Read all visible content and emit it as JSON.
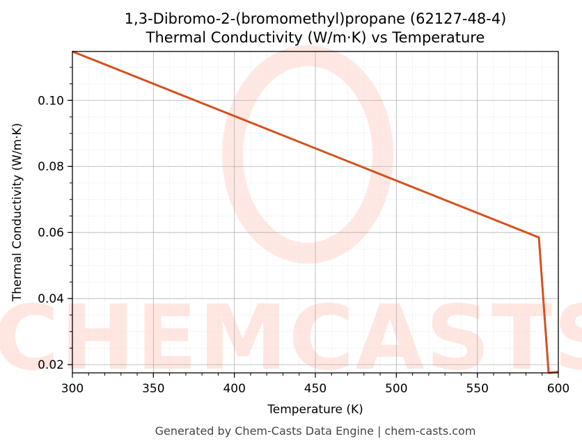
{
  "chart_data": {
    "type": "line",
    "title": "1,3-Dibromo-2-(bromomethyl)propane (62127-48-4)",
    "subtitle": "Thermal Conductivity (W/m·K) vs Temperature",
    "xlabel": "Temperature (K)",
    "ylabel": "Thermal Conductivity (W/m·K)",
    "xlim": [
      300,
      600
    ],
    "ylim": [
      0.0175,
      0.1148
    ],
    "x_ticks": [
      300,
      350,
      400,
      450,
      500,
      550,
      600
    ],
    "x_tick_labels": [
      "300",
      "350",
      "400",
      "450",
      "500",
      "550",
      "600"
    ],
    "y_ticks": [
      0.02,
      0.04,
      0.06,
      0.08,
      0.1
    ],
    "y_tick_labels": [
      "0.02",
      "0.04",
      "0.06",
      "0.08",
      "0.10"
    ],
    "grid": true,
    "line_color": "#d4511e",
    "series": [
      {
        "x": [
          300,
          588,
          594,
          600
        ],
        "y": [
          0.1148,
          0.0585,
          0.0175,
          0.0178
        ]
      }
    ]
  },
  "footer": "Generated by Chem-Casts Data Engine | chem-casts.com",
  "watermark": "CHEMCASTS"
}
